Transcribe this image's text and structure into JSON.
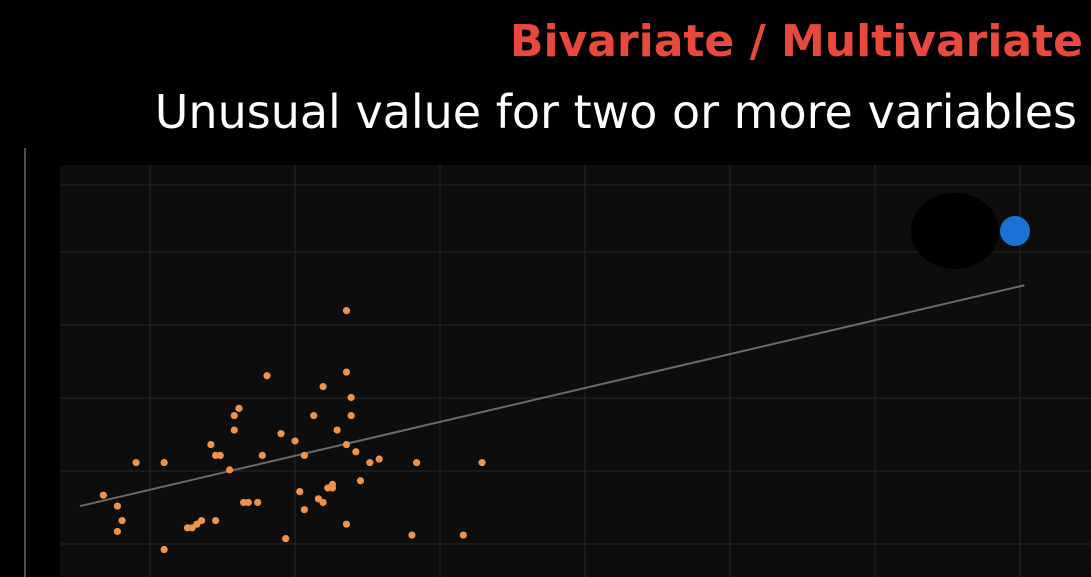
{
  "slide": {
    "title": "Bivariate / Multivariate",
    "subtitle": "Unusual value for two or more variables",
    "title_color": "#e8493c",
    "subtitle_color": "#ffffff"
  },
  "chart_data": {
    "type": "scatter",
    "grid": true,
    "xlim": [
      0,
      100
    ],
    "ylim": [
      0,
      100
    ],
    "colors": {
      "background": "#0d0d0d",
      "grid": "#262626",
      "points": "#f0924a",
      "outlier": "#1a72d9",
      "trendline": "#6a6a6a"
    },
    "series": [
      {
        "x": [
          2.5,
          4,
          4.5,
          4,
          6,
          9,
          9,
          11.5,
          12,
          12.5,
          13,
          14,
          14.5,
          14.5,
          15,
          16,
          16.5,
          16.5,
          17,
          17.5,
          18,
          19,
          19.5,
          20,
          21.5,
          22,
          23,
          23.5,
          24,
          24,
          25,
          25.5,
          26,
          26,
          26.5,
          27,
          27,
          27.5,
          28.5,
          28.5,
          28.5,
          28.5,
          29,
          29,
          29.5,
          30,
          31,
          32,
          35.5,
          36,
          41,
          43
        ],
        "y": [
          19,
          16,
          12,
          9,
          28,
          28,
          4,
          10,
          10,
          11,
          12,
          33,
          12,
          30,
          30,
          26,
          37,
          41,
          43,
          17,
          17,
          17,
          30,
          52,
          36,
          7,
          34,
          20,
          15,
          30,
          41,
          18,
          17,
          49,
          21,
          21,
          22,
          37,
          70,
          33,
          11,
          53,
          41,
          46,
          31,
          23,
          28,
          29,
          8,
          28,
          8,
          28
        ]
      }
    ],
    "outliers": [
      {
        "x": 100,
        "y": 92
      }
    ],
    "trendline": {
      "x1": 0,
      "y1": 16,
      "x2": 101,
      "y2": 77
    }
  }
}
